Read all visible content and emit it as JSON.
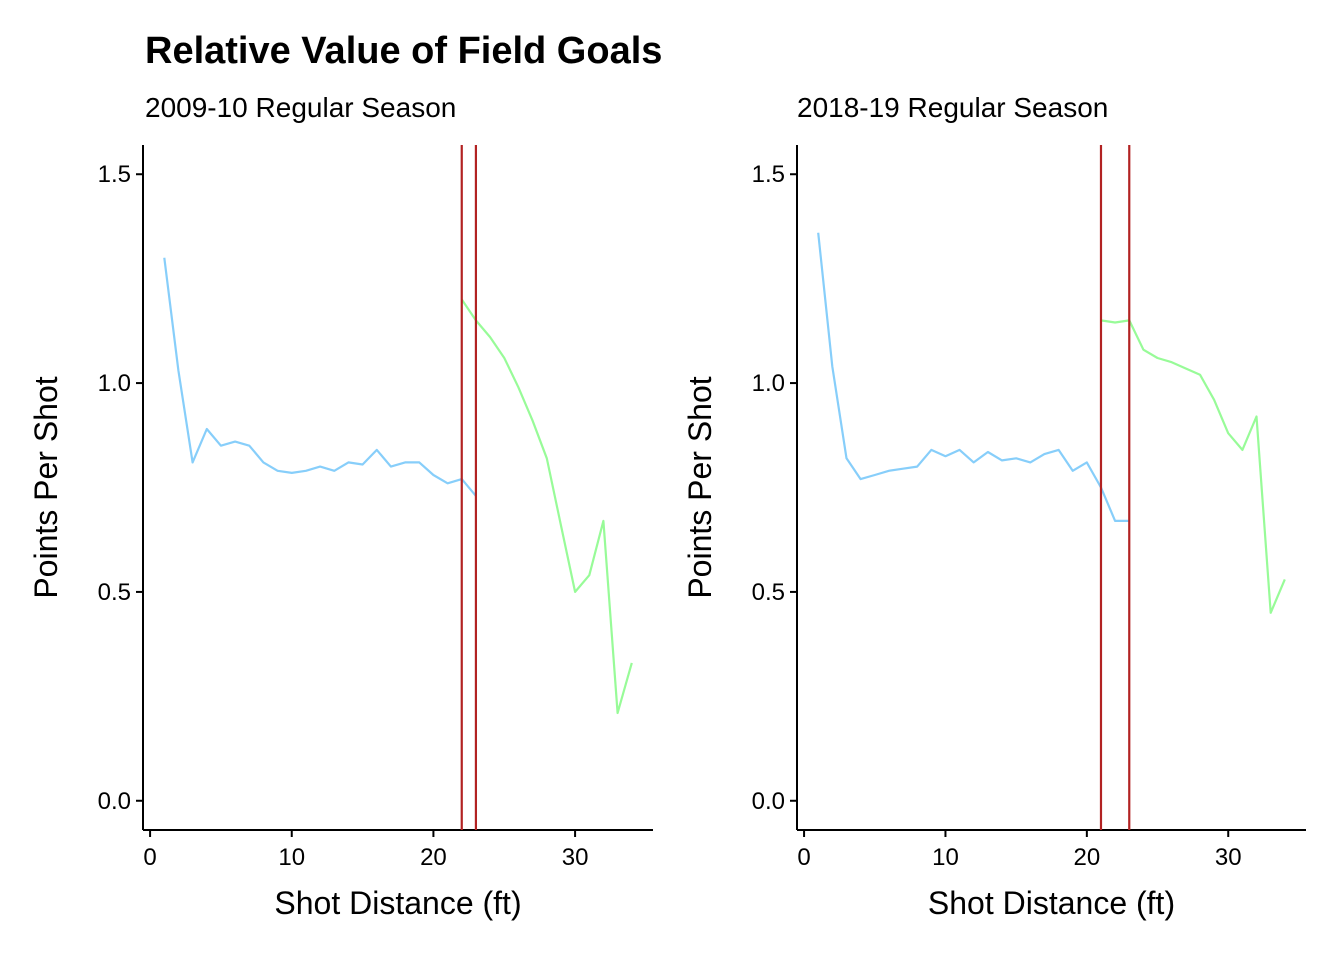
{
  "title": "Relative Value of Field Goals",
  "colors": {
    "two_point": "#87cefa",
    "three_point": "#98fb98",
    "line_marker": "#b22222",
    "axis": "#000000"
  },
  "chart_data": [
    {
      "type": "line",
      "subtitle": "2009-10 Regular Season",
      "xlabel": "Shot Distance (ft)",
      "ylabel": "Points Per Shot",
      "xlim": [
        -0.5,
        35.5
      ],
      "ylim": [
        -0.07,
        1.57
      ],
      "xticks": [
        "0",
        "10",
        "20",
        "30"
      ],
      "yticks": [
        "0.0",
        "0.5",
        "1.0",
        "1.5"
      ],
      "vlines": [
        22,
        23
      ],
      "series": [
        {
          "key": "two_point",
          "x": [
            1,
            2,
            3,
            4,
            5,
            6,
            7,
            8,
            9,
            10,
            11,
            12,
            13,
            14,
            15,
            16,
            17,
            18,
            19,
            20,
            21,
            22,
            23
          ],
          "y": [
            1.3,
            1.03,
            0.81,
            0.89,
            0.85,
            0.86,
            0.85,
            0.81,
            0.79,
            0.785,
            0.79,
            0.8,
            0.79,
            0.81,
            0.805,
            0.84,
            0.8,
            0.81,
            0.81,
            0.78,
            0.76,
            0.77,
            0.73
          ]
        },
        {
          "key": "three_point",
          "x": [
            22,
            23,
            24,
            25,
            26,
            27,
            28,
            29,
            30,
            31,
            32,
            33,
            34
          ],
          "y": [
            1.2,
            1.15,
            1.11,
            1.06,
            0.99,
            0.91,
            0.82,
            0.66,
            0.5,
            0.54,
            0.67,
            0.21,
            0.33
          ]
        }
      ]
    },
    {
      "type": "line",
      "subtitle": "2018-19 Regular Season",
      "xlabel": "Shot Distance (ft)",
      "ylabel": "Points Per Shot",
      "xlim": [
        -0.5,
        35.5
      ],
      "ylim": [
        -0.07,
        1.57
      ],
      "xticks": [
        "0",
        "10",
        "20",
        "30"
      ],
      "yticks": [
        "0.0",
        "0.5",
        "1.0",
        "1.5"
      ],
      "vlines": [
        21,
        23
      ],
      "series": [
        {
          "key": "two_point",
          "x": [
            1,
            2,
            3,
            4,
            5,
            6,
            7,
            8,
            9,
            10,
            11,
            12,
            13,
            14,
            15,
            16,
            17,
            18,
            19,
            20,
            21,
            22,
            23
          ],
          "y": [
            1.36,
            1.04,
            0.82,
            0.77,
            0.78,
            0.79,
            0.795,
            0.8,
            0.84,
            0.825,
            0.84,
            0.81,
            0.835,
            0.815,
            0.82,
            0.81,
            0.83,
            0.84,
            0.79,
            0.81,
            0.75,
            0.67,
            0.67
          ]
        },
        {
          "key": "three_point",
          "x": [
            21,
            22,
            23,
            24,
            25,
            26,
            27,
            28,
            29,
            30,
            31,
            32,
            33,
            34
          ],
          "y": [
            1.15,
            1.145,
            1.15,
            1.08,
            1.06,
            1.05,
            1.035,
            1.02,
            0.96,
            0.88,
            0.84,
            0.92,
            0.45,
            0.53
          ]
        }
      ]
    }
  ]
}
